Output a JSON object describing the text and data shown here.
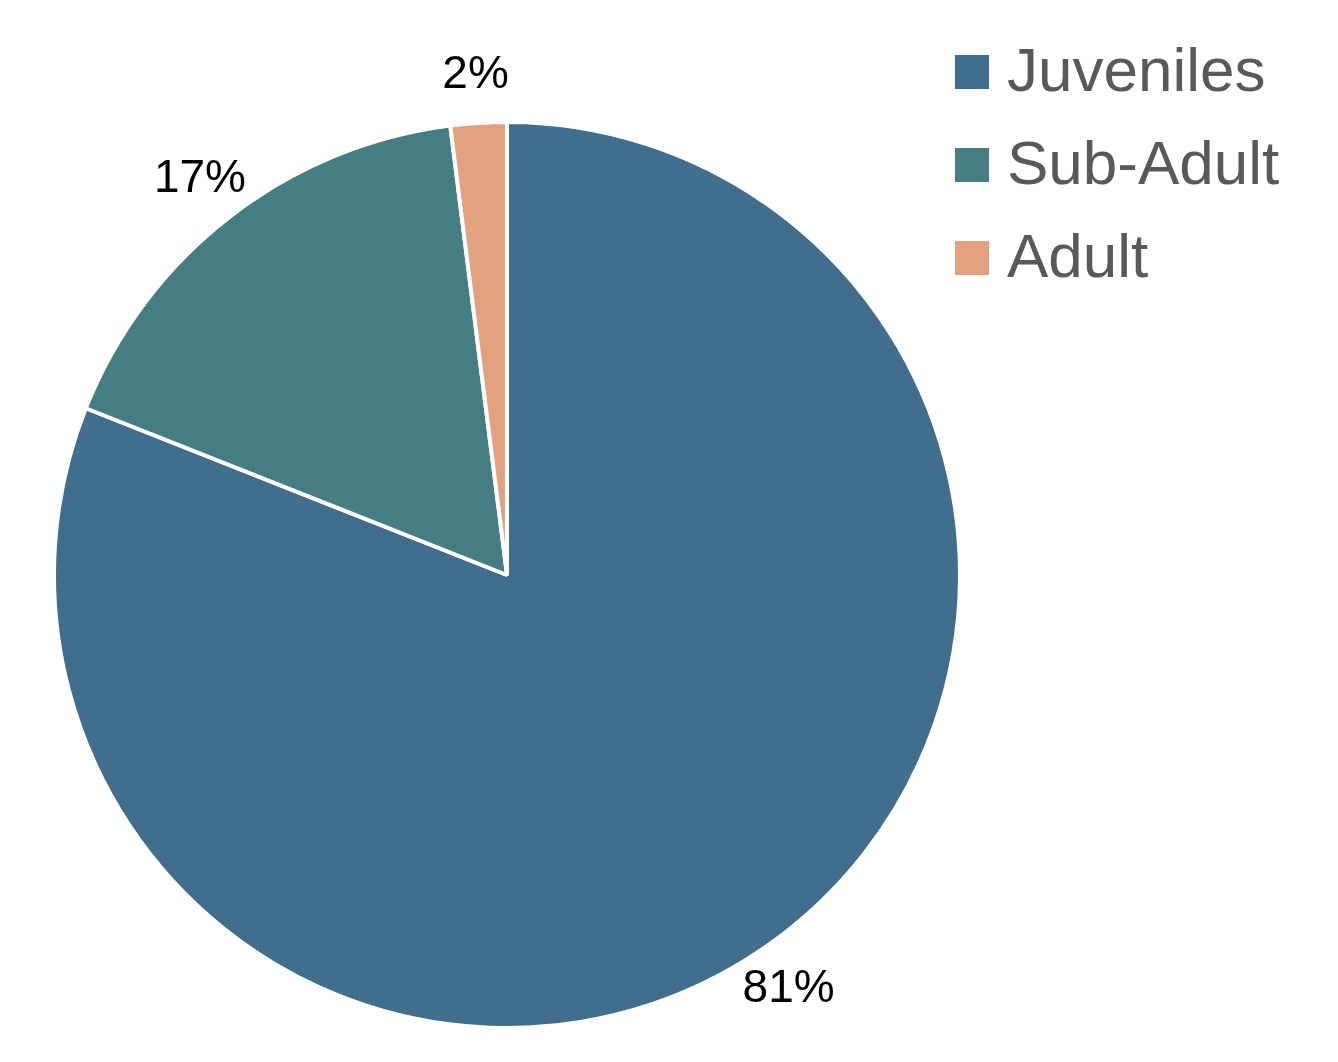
{
  "chart_data": {
    "type": "pie",
    "categories": [
      "Juveniles",
      "Sub-Adult",
      "Adult"
    ],
    "values": [
      81,
      17,
      2
    ],
    "value_labels": [
      "81%",
      "17%",
      "2%"
    ],
    "colors": [
      "#416e8c",
      "#447e82",
      "#e2a27f"
    ],
    "legend": "top right"
  }
}
